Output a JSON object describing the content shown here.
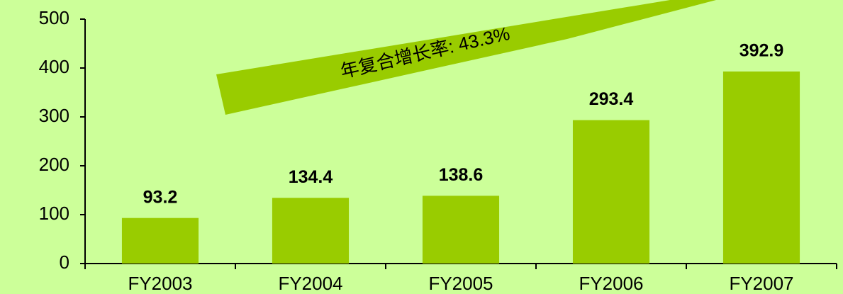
{
  "chart_data": {
    "type": "bar",
    "categories": [
      "FY2003",
      "FY2004",
      "FY2005",
      "FY2006",
      "FY2007"
    ],
    "values": [
      93.2,
      134.4,
      138.6,
      293.4,
      392.9
    ],
    "color": "#99cc00",
    "ylim": [
      0,
      500
    ],
    "yticks": [
      0,
      100,
      200,
      300,
      400,
      500
    ],
    "annotation": "年复合增长率: 43.3%"
  }
}
